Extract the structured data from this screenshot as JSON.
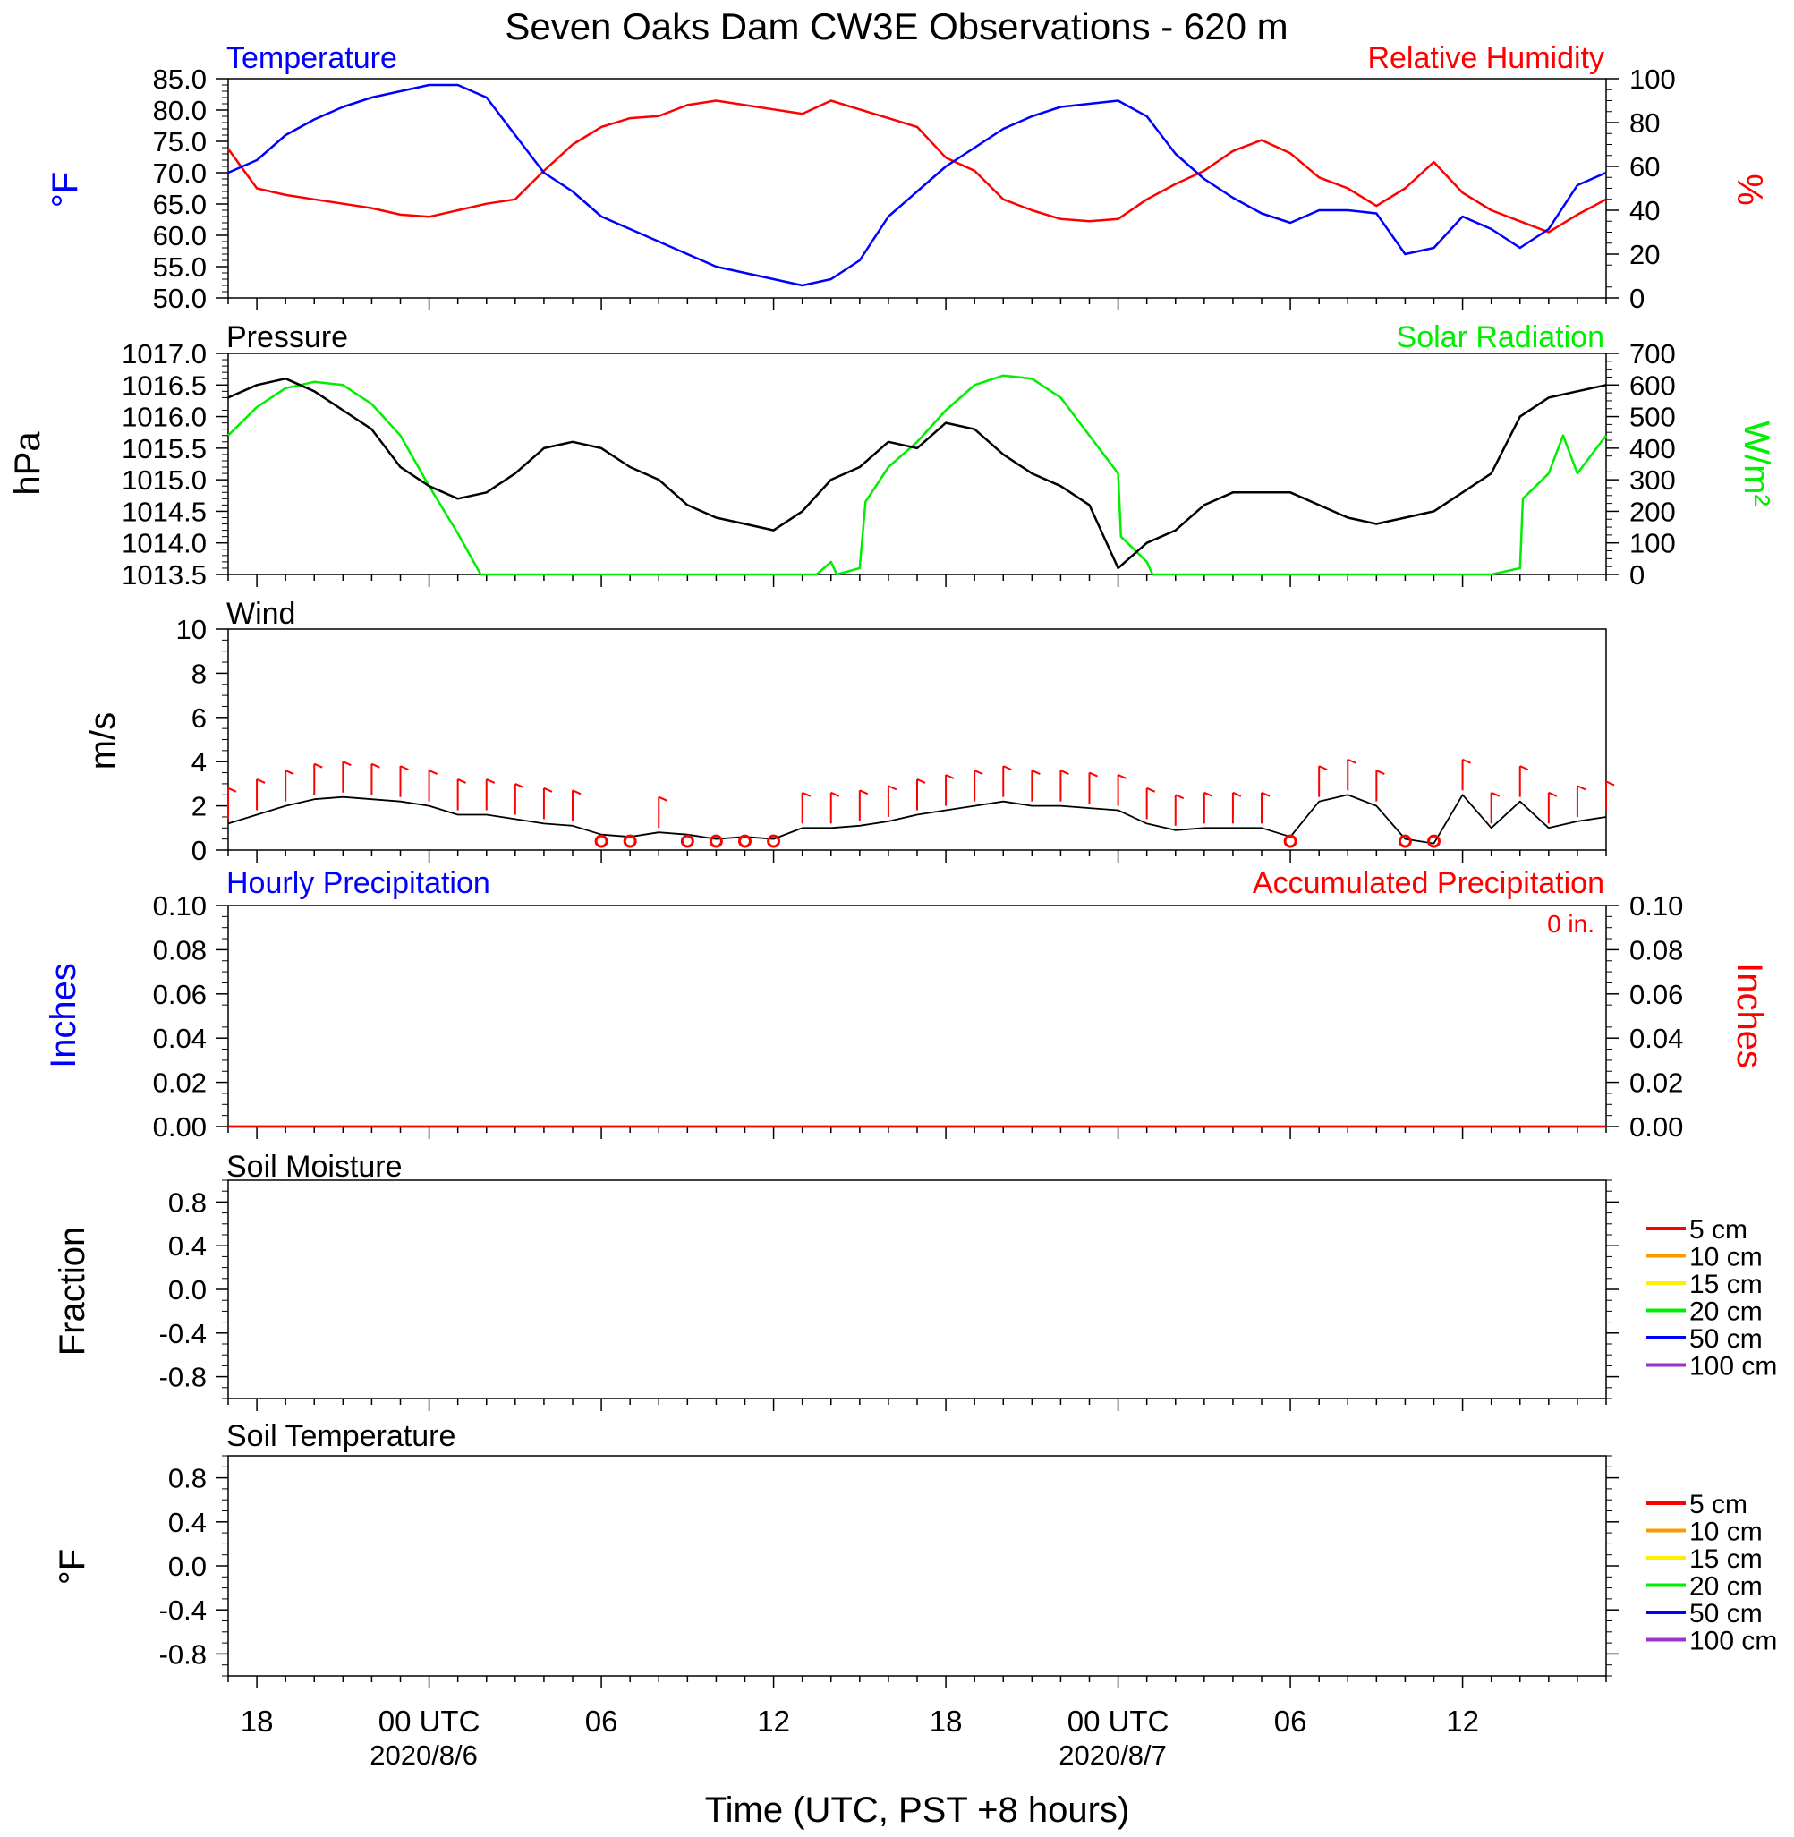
{
  "title": "Seven Oaks Dam CW3E Observations - 620 m",
  "x_axis": {
    "label": "Time (UTC, PST +8 hours)",
    "range_hours": [
      -7,
      41
    ],
    "ticks": [
      {
        "h": -6,
        "label": "18",
        "date": ""
      },
      {
        "h": 0,
        "label": "00 UTC",
        "date": "2020/8/6"
      },
      {
        "h": 6,
        "label": "06",
        "date": ""
      },
      {
        "h": 12,
        "label": "12",
        "date": ""
      },
      {
        "h": 18,
        "label": "18",
        "date": ""
      },
      {
        "h": 24,
        "label": "00 UTC",
        "date": "2020/8/7"
      },
      {
        "h": 30,
        "label": "06",
        "date": ""
      },
      {
        "h": 36,
        "label": "12",
        "date": ""
      }
    ]
  },
  "colors": {
    "temperature": "#0000ff",
    "humidity": "#ff0000",
    "pressure": "#000000",
    "solar": "#00ee00",
    "wind": "#000000",
    "barb": "#ff0000",
    "hourly_precip": "#0000ff",
    "accum_precip": "#ff0000"
  },
  "panels": {
    "temp_rh": {
      "left_title": "Temperature",
      "right_title": "Relative Humidity",
      "left_unit": "°F",
      "right_unit": "%",
      "left_ticks": [
        "85.0",
        "80.0",
        "75.0",
        "70.0",
        "65.0",
        "60.0",
        "55.0",
        "50.0"
      ],
      "right_ticks": [
        "100",
        "80",
        "60",
        "40",
        "20",
        "0"
      ]
    },
    "pressure_solar": {
      "left_title": "Pressure",
      "right_title": "Solar Radiation",
      "left_unit": "hPa",
      "right_unit": "W/m²",
      "left_ticks": [
        "1017.0",
        "1016.5",
        "1016.0",
        "1015.5",
        "1015.0",
        "1014.5",
        "1014.0",
        "1013.5"
      ],
      "right_ticks": [
        "700",
        "600",
        "500",
        "400",
        "300",
        "200",
        "100",
        "0"
      ]
    },
    "wind": {
      "left_title": "Wind",
      "left_unit": "m/s",
      "left_ticks": [
        "10",
        "8",
        "6",
        "4",
        "2",
        "0"
      ]
    },
    "precip": {
      "left_title": "Hourly Precipitation",
      "right_title": "Accumulated Precipitation",
      "left_unit": "Inches",
      "right_unit": "Inches",
      "accum_label": "0 in.",
      "left_ticks": [
        "0.10",
        "0.08",
        "0.06",
        "0.04",
        "0.02",
        "0.00"
      ],
      "right_ticks": [
        "0.10",
        "0.08",
        "0.06",
        "0.04",
        "0.02",
        "0.00"
      ]
    },
    "soil_moisture": {
      "left_title": "Soil Moisture",
      "left_unit": "Fraction",
      "left_ticks": [
        "0.8",
        "0.4",
        "0.0",
        "-0.4",
        "-0.8"
      ],
      "legend": [
        {
          "label": "5 cm",
          "color": "#ff0000"
        },
        {
          "label": "10 cm",
          "color": "#ff9900"
        },
        {
          "label": "15 cm",
          "color": "#ffee00"
        },
        {
          "label": "20 cm",
          "color": "#00ee00"
        },
        {
          "label": "50 cm",
          "color": "#0000ff"
        },
        {
          "label": "100 cm",
          "color": "#9933cc"
        }
      ]
    },
    "soil_temperature": {
      "left_title": "Soil Temperature",
      "left_unit": "°F",
      "left_ticks": [
        "0.8",
        "0.4",
        "0.0",
        "-0.4",
        "-0.8"
      ],
      "legend": [
        {
          "label": "5 cm",
          "color": "#ff0000"
        },
        {
          "label": "10 cm",
          "color": "#ff9900"
        },
        {
          "label": "15 cm",
          "color": "#ffee00"
        },
        {
          "label": "20 cm",
          "color": "#00ee00"
        },
        {
          "label": "50 cm",
          "color": "#0000ff"
        },
        {
          "label": "100 cm",
          "color": "#9933cc"
        }
      ]
    }
  },
  "chart_data": [
    {
      "type": "line",
      "title": "Temperature / Relative Humidity",
      "ylim": [
        50,
        85
      ],
      "y2lim": [
        0,
        100
      ],
      "series": [
        {
          "name": "Temperature",
          "axis": "left",
          "x": [
            -7,
            -6,
            -5,
            -4,
            -3,
            -2,
            -1,
            0,
            1,
            2,
            3,
            4,
            5,
            6,
            7,
            8,
            9,
            10,
            11,
            12,
            13,
            14,
            15,
            16,
            17,
            18,
            19,
            20,
            21,
            22,
            23,
            24,
            25,
            26,
            27,
            28,
            29,
            30,
            31,
            32,
            33,
            34,
            35,
            36,
            37,
            38,
            39,
            40,
            41
          ],
          "y": [
            70,
            72,
            76,
            78.5,
            80.5,
            82,
            83,
            84,
            84,
            82,
            76,
            70,
            67,
            63,
            61,
            59,
            57,
            55,
            54,
            53,
            52,
            53,
            56,
            63,
            67,
            71,
            74,
            77,
            79,
            80.5,
            81,
            81.5,
            79,
            73,
            69,
            66,
            63.5,
            62,
            64,
            64,
            63.5,
            57,
            58,
            63,
            61,
            58,
            61,
            68,
            70
          ]
        },
        {
          "name": "Relative Humidity",
          "axis": "right",
          "x": [
            -7,
            -6,
            -5,
            -4,
            -3,
            -2,
            -1,
            0,
            1,
            2,
            3,
            4,
            5,
            6,
            7,
            8,
            9,
            10,
            11,
            12,
            13,
            14,
            15,
            16,
            17,
            18,
            19,
            20,
            21,
            22,
            23,
            24,
            25,
            26,
            27,
            28,
            29,
            30,
            31,
            32,
            33,
            34,
            35,
            36,
            37,
            38,
            39,
            40,
            41
          ],
          "y": [
            68,
            50,
            47,
            45,
            43,
            41,
            38,
            37,
            40,
            43,
            45,
            58,
            70,
            78,
            82,
            83,
            88,
            90,
            88,
            86,
            84,
            90,
            86,
            82,
            78,
            64,
            58,
            45,
            40,
            36,
            35,
            36,
            45,
            52,
            58,
            67,
            72,
            66,
            55,
            50,
            42,
            50,
            62,
            48,
            40,
            35,
            30,
            38,
            45
          ]
        }
      ]
    },
    {
      "type": "line",
      "title": "Pressure / Solar Radiation",
      "ylim": [
        1013.5,
        1017.0
      ],
      "y2lim": [
        0,
        700
      ],
      "series": [
        {
          "name": "Pressure",
          "axis": "left",
          "x": [
            -7,
            -6,
            -5,
            -4,
            -3,
            -2,
            -1,
            0,
            1,
            2,
            3,
            4,
            5,
            6,
            7,
            8,
            9,
            10,
            11,
            12,
            13,
            14,
            15,
            16,
            17,
            18,
            19,
            20,
            21,
            22,
            23,
            24,
            25,
            26,
            27,
            28,
            29,
            30,
            31,
            32,
            33,
            34,
            35,
            36,
            37,
            38,
            39,
            40,
            41
          ],
          "y": [
            1016.3,
            1016.5,
            1016.6,
            1016.4,
            1016.1,
            1015.8,
            1015.2,
            1014.9,
            1014.7,
            1014.8,
            1015.1,
            1015.5,
            1015.6,
            1015.5,
            1015.2,
            1015.0,
            1014.6,
            1014.4,
            1014.3,
            1014.2,
            1014.5,
            1015.0,
            1015.2,
            1015.6,
            1015.5,
            1015.9,
            1015.8,
            1015.4,
            1015.1,
            1014.9,
            1014.6,
            1013.6,
            1014.0,
            1014.2,
            1014.6,
            1014.8,
            1014.8,
            1014.8,
            1014.6,
            1014.4,
            1014.3,
            1014.4,
            1014.5,
            1014.8,
            1015.1,
            1016.0,
            1016.3,
            1016.4,
            1016.5
          ]
        },
        {
          "name": "Solar Radiation",
          "axis": "right",
          "x": [
            -7,
            -6,
            -5,
            -4,
            -3,
            -2,
            -1,
            0,
            1,
            1.8,
            2,
            6,
            12,
            13.5,
            14,
            14.2,
            15,
            15.2,
            16,
            17,
            18,
            19,
            20,
            21,
            22,
            23,
            24,
            24.1,
            25,
            25.2,
            30,
            36,
            37,
            38,
            38.1,
            39,
            39.5,
            40,
            41
          ],
          "y": [
            440,
            530,
            590,
            610,
            600,
            540,
            440,
            280,
            130,
            0,
            0,
            0,
            0,
            0,
            40,
            0,
            20,
            230,
            340,
            420,
            520,
            600,
            630,
            620,
            560,
            440,
            320,
            120,
            40,
            0,
            0,
            0,
            0,
            20,
            240,
            320,
            440,
            320,
            440
          ]
        }
      ]
    },
    {
      "type": "line",
      "title": "Wind",
      "ylim": [
        0,
        10
      ],
      "series": [
        {
          "name": "Wind",
          "axis": "left",
          "x": [
            -7,
            -6,
            -5,
            -4,
            -3,
            -2,
            -1,
            0,
            1,
            2,
            3,
            4,
            5,
            6,
            7,
            8,
            9,
            10,
            11,
            12,
            13,
            14,
            15,
            16,
            17,
            18,
            19,
            20,
            21,
            22,
            23,
            24,
            25,
            26,
            27,
            28,
            29,
            30,
            31,
            32,
            33,
            34,
            35,
            36,
            37,
            38,
            39,
            40,
            41
          ],
          "y": [
            1.2,
            1.6,
            2.0,
            2.3,
            2.4,
            2.3,
            2.2,
            2.0,
            1.6,
            1.6,
            1.4,
            1.2,
            1.1,
            0.7,
            0.6,
            0.8,
            0.7,
            0.5,
            0.6,
            0.5,
            1.0,
            1.0,
            1.1,
            1.3,
            1.6,
            1.8,
            2.0,
            2.2,
            2.0,
            2.0,
            1.9,
            1.8,
            1.2,
            0.9,
            1.0,
            1.0,
            1.0,
            0.6,
            2.2,
            2.5,
            2.0,
            0.5,
            0.3,
            2.5,
            1.0,
            2.2,
            1.0,
            1.3,
            1.5
          ]
        }
      ]
    },
    {
      "type": "line",
      "title": "Hourly Precipitation / Accumulated Precipitation",
      "ylim": [
        0,
        0.1
      ],
      "y2lim": [
        0,
        0.1
      ],
      "series": [
        {
          "name": "Hourly Precipitation",
          "axis": "left",
          "x": [
            -7,
            41
          ],
          "y": [
            0,
            0
          ]
        },
        {
          "name": "Accumulated Precipitation",
          "axis": "right",
          "x": [
            -7,
            41
          ],
          "y": [
            0,
            0
          ]
        }
      ]
    },
    {
      "type": "line",
      "title": "Soil Moisture",
      "ylim": [
        -1,
        1
      ],
      "series": []
    },
    {
      "type": "line",
      "title": "Soil Temperature",
      "ylim": [
        -1,
        1
      ],
      "series": []
    }
  ]
}
